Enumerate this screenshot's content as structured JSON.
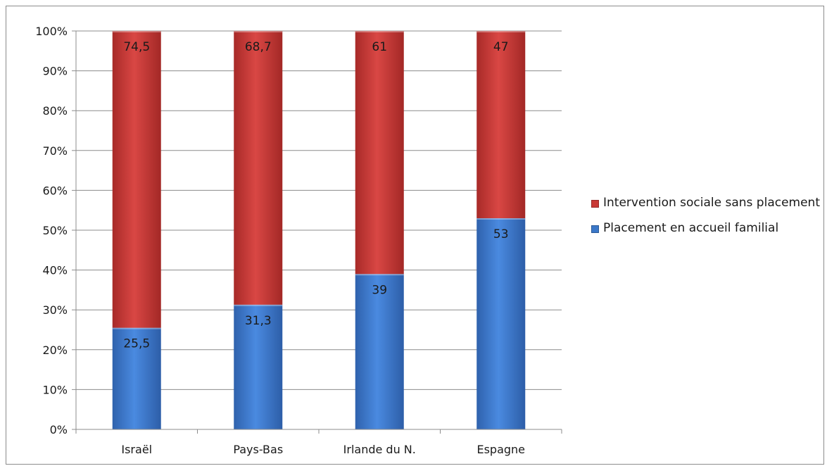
{
  "chart_data": {
    "type": "bar",
    "stacked": true,
    "percent_scale": true,
    "categories": [
      "Israël",
      "Pays-Bas",
      "Irlande du N.",
      "Espagne"
    ],
    "series": [
      {
        "name": "Placement en accueil familial",
        "values": [
          25.5,
          31.3,
          39,
          53
        ],
        "labels": [
          "25,5",
          "31,3",
          "39",
          "53"
        ],
        "color": "#3b78c9"
      },
      {
        "name": "Intervention sociale sans placement",
        "values": [
          74.5,
          68.7,
          61,
          47
        ],
        "labels": [
          "74,5",
          "68,7",
          "61",
          "47"
        ],
        "color": "#c93936"
      }
    ],
    "ylim": [
      0,
      100
    ],
    "yticks": [
      "0%",
      "10%",
      "20%",
      "30%",
      "40%",
      "50%",
      "60%",
      "70%",
      "80%",
      "90%",
      "100%"
    ],
    "grid": true,
    "legend_position": "right",
    "legend_order": [
      1,
      0
    ]
  }
}
